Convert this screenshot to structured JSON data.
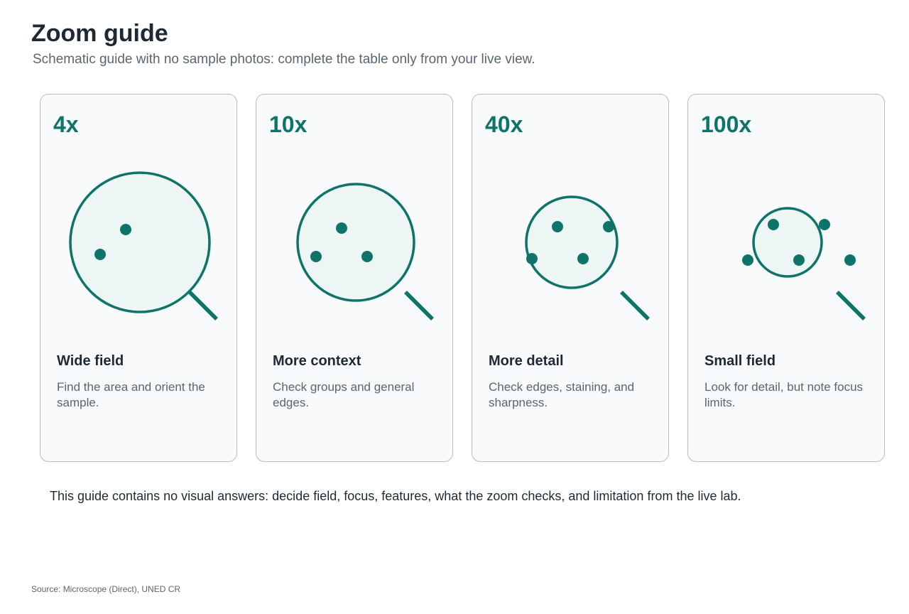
{
  "title": "Zoom guide",
  "subtitle": "Schematic guide with no sample photos: complete the table only from your live view.",
  "colors": {
    "accent": "#0e7368",
    "lens_fill": "#edf6f4",
    "card_bg": "#f9fafc",
    "card_border": "#b7bec6"
  },
  "cards": [
    {
      "zoom": "4x",
      "heading": "Wide field",
      "description": "Find the area and orient the sample.",
      "icon": "magnifier-icon"
    },
    {
      "zoom": "10x",
      "heading": "More context",
      "description": "Check groups and general edges.",
      "icon": "magnifier-icon"
    },
    {
      "zoom": "40x",
      "heading": "More detail",
      "description": "Check edges, staining, and sharpness.",
      "icon": "magnifier-icon"
    },
    {
      "zoom": "100x",
      "heading": "Small field",
      "description": "Look for detail, but note focus limits.",
      "icon": "magnifier-icon"
    }
  ],
  "note": "This guide contains no visual answers: decide field, focus, features, what the zoom checks, and limitation from the live lab.",
  "source": "Source: Microscope (Direct), UNED CR"
}
